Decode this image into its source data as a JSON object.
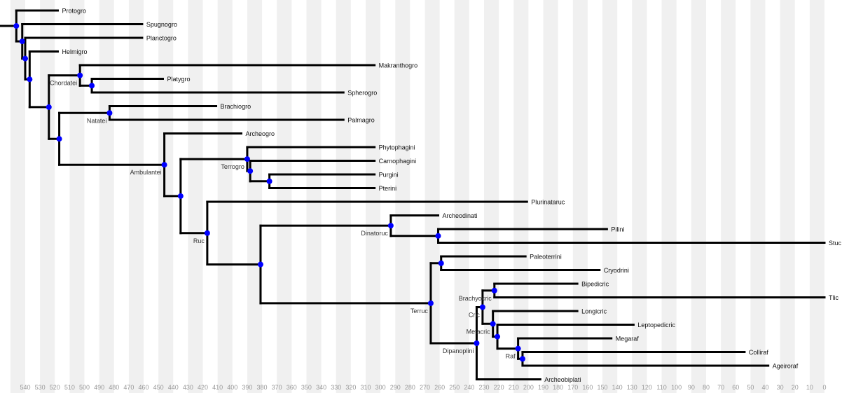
{
  "chart_data": {
    "type": "phylogenetic-tree",
    "axis": {
      "min": 0,
      "max": 540,
      "step": 10,
      "reversed": true,
      "unit": "age"
    },
    "colors": {
      "branch": "#000000",
      "node": "#0000ff",
      "stripe": "#f0f0f0"
    },
    "root_start": 557,
    "tree": {
      "age": 546,
      "children": [
        {
          "name": "Protogro",
          "age": 518
        },
        {
          "age": 542,
          "children": [
            {
              "name": "Spugnogro",
              "age": 461
            },
            {
              "age": 540,
              "children": [
                {
                  "name": "Planctogro",
                  "age": 461
                },
                {
                  "age": 537,
                  "children": [
                    {
                      "name": "Helmigro",
                      "age": 518
                    },
                    {
                      "age": 524,
                      "children": [
                        {
                          "label": "Chordatei",
                          "age": 503,
                          "children": [
                            {
                              "name": "Makranthogro",
                              "age": 304
                            },
                            {
                              "age": 495,
                              "children": [
                                {
                                  "name": "Platygro",
                                  "age": 447
                                },
                                {
                                  "name": "Spherogro",
                                  "age": 325
                                }
                              ]
                            }
                          ]
                        },
                        {
                          "age": 517,
                          "children": [
                            {
                              "label": "Natatei",
                              "age": 483,
                              "children": [
                                {
                                  "name": "Brachiogro",
                                  "age": 411
                                },
                                {
                                  "name": "Palmagro",
                                  "age": 325
                                }
                              ]
                            },
                            {
                              "label": "Ambulantei",
                              "age": 446,
                              "children": [
                                {
                                  "name": "Archeogro",
                                  "age": 394
                                },
                                {
                                  "age": 435,
                                  "children": [
                                    {
                                      "label": "Terrogro",
                                      "age": 390,
                                      "children": [
                                        {
                                          "name": "Phytophagini",
                                          "age": 304
                                        },
                                        {
                                          "age": 388,
                                          "children": [
                                            {
                                              "name": "Carnophagini",
                                              "age": 304
                                            },
                                            {
                                              "age": 375,
                                              "children": [
                                                {
                                                  "name": "Purgini",
                                                  "age": 304
                                                },
                                                {
                                                  "name": "Pterini",
                                                  "age": 304
                                                }
                                              ]
                                            }
                                          ]
                                        }
                                      ]
                                    },
                                    {
                                      "label": "Ruc",
                                      "age": 417,
                                      "children": [
                                        {
                                          "name": "Plurinataruc",
                                          "age": 201
                                        },
                                        {
                                          "age": 381,
                                          "children": [
                                            {
                                              "label": "Dinatoruc",
                                              "age": 293,
                                              "children": [
                                                {
                                                  "name": "Archeodinati",
                                                  "age": 261
                                                },
                                                {
                                                  "age": 261,
                                                  "children": [
                                                    {
                                                      "name": "Pilini",
                                                      "age": 147
                                                    },
                                                    {
                                                      "name": "Stuc",
                                                      "age": 0
                                                    }
                                                  ]
                                                }
                                              ]
                                            },
                                            {
                                              "label": "Terruc",
                                              "age": 266,
                                              "children": [
                                                {
                                                  "age": 259,
                                                  "children": [
                                                    {
                                                      "name": "Paleoterrini",
                                                      "age": 202
                                                    },
                                                    {
                                                      "name": "Cryodrini",
                                                      "age": 152
                                                    }
                                                  ]
                                                },
                                                {
                                                  "label": "Dipanoplini",
                                                  "age": 235,
                                                  "children": [
                                                    {
                                                      "label": "Cric",
                                                      "age": 231,
                                                      "children": [
                                                        {
                                                          "label": "Brachyocric",
                                                          "age": 223,
                                                          "children": [
                                                            {
                                                              "name": "Bipedicric",
                                                              "age": 167
                                                            },
                                                            {
                                                              "name": "Tlic",
                                                              "age": 0
                                                            }
                                                          ]
                                                        },
                                                        {
                                                          "label": "Metacric",
                                                          "age": 224,
                                                          "children": [
                                                            {
                                                              "name": "Longicric",
                                                              "age": 167
                                                            },
                                                            {
                                                              "age": 221,
                                                              "children": [
                                                                {
                                                                  "name": "Leptopedicric",
                                                                  "age": 129
                                                                },
                                                                {
                                                                  "label": "Raf",
                                                                  "age": 207,
                                                                  "children": [
                                                                    {
                                                                      "name": "Megaraf",
                                                                      "age": 144
                                                                    },
                                                                    {
                                                                      "age": 204,
                                                                      "children": [
                                                                        {
                                                                          "name": "Colliraf",
                                                                          "age": 54
                                                                        },
                                                                        {
                                                                          "name": "Ageiroraf",
                                                                          "age": 38
                                                                        }
                                                                      ]
                                                                    }
                                                                  ]
                                                                }
                                                              ]
                                                            }
                                                          ]
                                                        }
                                                      ]
                                                    },
                                                    {
                                                      "name": "Archeobiplati",
                                                      "age": 192
                                                    }
                                                  ]
                                                }
                                              ]
                                            }
                                          ]
                                        }
                                      ]
                                    }
                                  ]
                                }
                              ]
                            }
                          ]
                        }
                      ]
                    }
                  ]
                }
              ]
            }
          ]
        }
      ]
    }
  }
}
